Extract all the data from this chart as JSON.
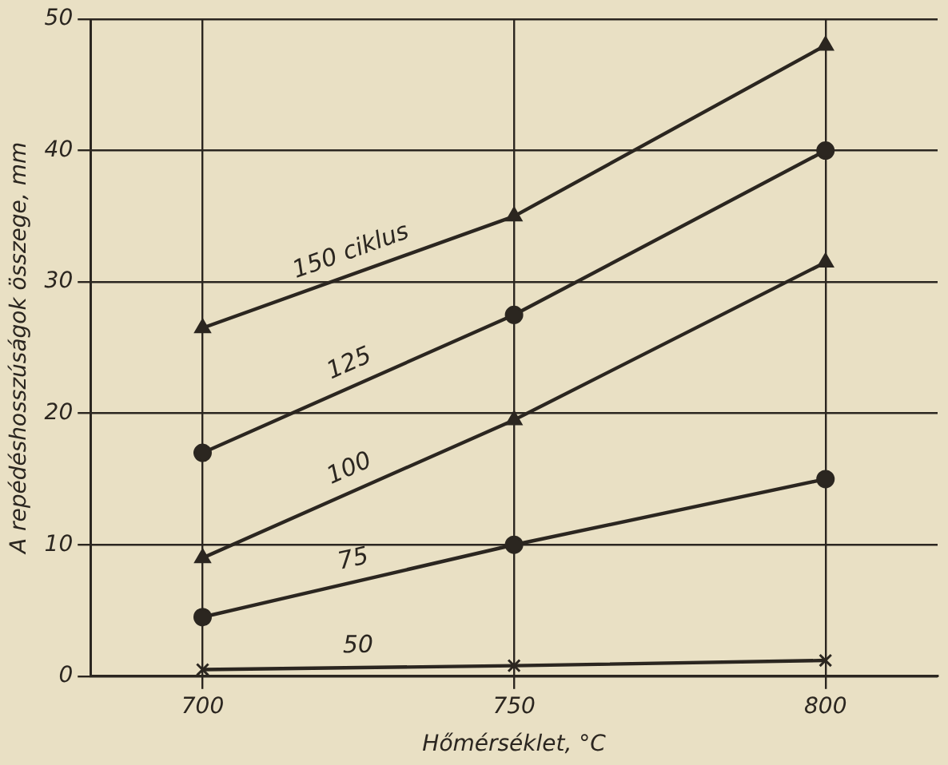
{
  "chart_data": {
    "type": "line",
    "xlabel": "Hőmérséklet, °C",
    "ylabel": "A repédéshosszúságok összege, mm",
    "x": [
      700,
      750,
      800
    ],
    "series": [
      {
        "name": "150 ciklus",
        "color": "#2b2620",
        "marker": "triangle",
        "values": [
          26.5,
          35,
          48
        ]
      },
      {
        "name": "125",
        "color": "#2b2620",
        "marker": "circle",
        "values": [
          17,
          27.5,
          40
        ]
      },
      {
        "name": "100",
        "color": "#2b2620",
        "marker": "triangle",
        "values": [
          9,
          19.5,
          31.5
        ]
      },
      {
        "name": "75",
        "color": "#2b2620",
        "marker": "circle",
        "values": [
          4.5,
          10,
          15
        ]
      },
      {
        "name": "50",
        "color": "#2b2620",
        "marker": "cross",
        "values": [
          0.5,
          0.8,
          1.2
        ]
      }
    ],
    "xlim": [
      682,
      818
    ],
    "xticks": [
      700,
      750,
      800
    ],
    "ylim": [
      0,
      50
    ],
    "yticks": [
      0,
      10,
      20,
      30,
      40,
      50
    ],
    "grid": true,
    "legend": false
  }
}
